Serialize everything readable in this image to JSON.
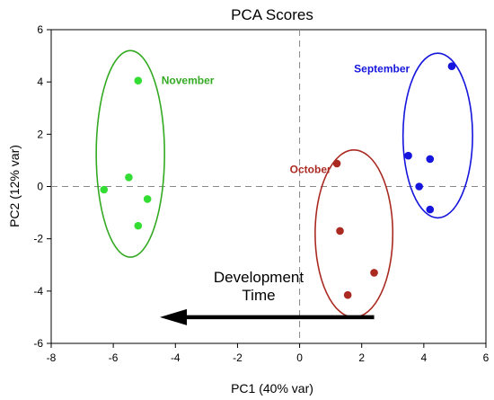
{
  "chart_data": {
    "type": "scatter",
    "title": "PCA Scores",
    "xlabel": "PC1 (40% var)",
    "ylabel": "PC2 (12% var)",
    "xlim": [
      -8,
      6
    ],
    "ylim": [
      -6,
      6
    ],
    "xticks": [
      -8,
      -6,
      -4,
      -2,
      0,
      2,
      4,
      6
    ],
    "yticks": [
      -6,
      -4,
      -2,
      0,
      2,
      4,
      6
    ],
    "grid": false,
    "reference_lines": "dashed lines at x=0 and y=0",
    "series": [
      {
        "name": "November",
        "color": "#33dd33",
        "ellipse_color": "#33aa22",
        "x": [
          -5.2,
          -5.5,
          -6.3,
          -4.9,
          -5.2
        ],
        "y": [
          4.05,
          0.35,
          -0.12,
          -0.48,
          -1.5
        ],
        "ellipse": {
          "cx": -5.45,
          "cy": 1.25,
          "rx": 1.1,
          "ry": 3.95
        }
      },
      {
        "name": "October",
        "color": "#aa2a22",
        "ellipse_color": "#aa2a22",
        "x": [
          1.2,
          1.3,
          2.4,
          1.55
        ],
        "y": [
          0.88,
          -1.7,
          -3.3,
          -4.15
        ],
        "ellipse": {
          "cx": 1.75,
          "cy": -1.8,
          "rx": 1.25,
          "ry": 3.2
        }
      },
      {
        "name": "September",
        "color": "#1515dd",
        "ellipse_color": "#1515dd",
        "x": [
          4.9,
          3.5,
          4.2,
          3.85,
          4.2
        ],
        "y": [
          4.6,
          1.18,
          1.05,
          0.0,
          -0.88
        ],
        "ellipse": {
          "cx": 4.45,
          "cy": 1.95,
          "rx": 1.12,
          "ry": 3.15
        }
      }
    ],
    "annotation": {
      "text_lines": [
        "Development",
        "Time"
      ],
      "arrow_from": [
        2.4,
        -5.0
      ],
      "arrow_to": [
        -4.5,
        -5.0
      ],
      "arrow_color": "#000000"
    }
  }
}
